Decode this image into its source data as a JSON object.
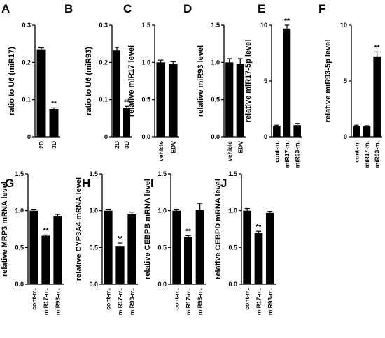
{
  "chart_data": [
    {
      "panel": "A",
      "type": "bar",
      "ylabel": "ratio to U6 (miR17)",
      "ylim": [
        0,
        0.3
      ],
      "yticks": [
        0,
        0.1,
        0.2,
        0.3
      ],
      "ytick_labels": [
        "0",
        "0.1",
        "0.2",
        "0.3"
      ],
      "categories": [
        "2D",
        "3D"
      ],
      "values": [
        0.235,
        0.075
      ],
      "errors": [
        0.004,
        0.003
      ],
      "annotations": [
        "",
        "**"
      ]
    },
    {
      "panel": "B",
      "type": "bar",
      "ylabel": "ratio to U6 (miR93)",
      "ylim": [
        0,
        0.3
      ],
      "yticks": [
        0,
        0.1,
        0.2,
        0.3
      ],
      "ytick_labels": [
        "0",
        "0.1",
        "0.2",
        "0.3"
      ],
      "categories": [
        "2D",
        "3D"
      ],
      "values": [
        0.232,
        0.077
      ],
      "errors": [
        0.008,
        0.005
      ],
      "annotations": [
        "",
        "**"
      ]
    },
    {
      "panel": "C",
      "type": "bar",
      "ylabel": "relative miR17 level",
      "ylim": [
        0,
        1.5
      ],
      "yticks": [
        0,
        0.5,
        1.0,
        1.5
      ],
      "ytick_labels": [
        "0.0",
        "0.5",
        "1.0",
        "1.5"
      ],
      "categories": [
        "vehicle",
        "EDV"
      ],
      "values": [
        1.0,
        0.98
      ],
      "errors": [
        0.03,
        0.03
      ],
      "annotations": [
        "",
        ""
      ]
    },
    {
      "panel": "D",
      "type": "bar",
      "ylabel": "relative miR93 level",
      "ylim": [
        0,
        1.5
      ],
      "yticks": [
        0,
        0.5,
        1.0,
        1.5
      ],
      "ytick_labels": [
        "0.0",
        "0.5",
        "1.0",
        "1.5"
      ],
      "categories": [
        "vehicle",
        "EDV"
      ],
      "values": [
        1.0,
        0.98
      ],
      "errors": [
        0.05,
        0.07
      ],
      "annotations": [
        "",
        ""
      ]
    },
    {
      "panel": "E",
      "type": "bar",
      "ylabel": "relative miR17-5p level",
      "ylim": [
        0,
        10
      ],
      "yticks": [
        0,
        5,
        10
      ],
      "ytick_labels": [
        "0",
        "5",
        "10"
      ],
      "categories": [
        "cont-m.",
        "miR17-m.",
        "miR93-m."
      ],
      "values": [
        1.0,
        9.7,
        1.05
      ],
      "errors": [
        0.05,
        0.3,
        0.15
      ],
      "annotations": [
        "",
        "**",
        ""
      ]
    },
    {
      "panel": "F",
      "type": "bar",
      "ylabel": "relative miR93-5p level",
      "ylim": [
        0,
        10
      ],
      "yticks": [
        0,
        5,
        10
      ],
      "ytick_labels": [
        "0",
        "5",
        "10"
      ],
      "categories": [
        "cont-m.",
        "miR17-m.",
        "miR93-m."
      ],
      "values": [
        1.0,
        0.95,
        7.2
      ],
      "errors": [
        0.05,
        0.05,
        0.4
      ],
      "annotations": [
        "",
        "",
        "**"
      ]
    },
    {
      "panel": "G",
      "type": "bar",
      "ylabel": "relative MRP3 mRNA level",
      "ylim": [
        0,
        1.5
      ],
      "yticks": [
        0,
        0.5,
        1.0,
        1.5
      ],
      "ytick_labels": [
        "0.0",
        "0.5",
        "1.0",
        "1.5"
      ],
      "categories": [
        "cont-m.",
        "miR17-m.",
        "miR93-m."
      ],
      "values": [
        1.0,
        0.66,
        0.92
      ],
      "errors": [
        0.02,
        0.01,
        0.03
      ],
      "annotations": [
        "",
        "**",
        ""
      ]
    },
    {
      "panel": "H",
      "type": "bar",
      "ylabel": "relative CYP3A4 mRNA level",
      "ylim": [
        0,
        1.5
      ],
      "yticks": [
        0,
        0.5,
        1.0,
        1.5
      ],
      "ytick_labels": [
        "0.0",
        "0.5",
        "1.0",
        "1.5"
      ],
      "categories": [
        "cont-m.",
        "miR17-m.",
        "miR93-m."
      ],
      "values": [
        1.0,
        0.52,
        0.95
      ],
      "errors": [
        0.02,
        0.04,
        0.03
      ],
      "annotations": [
        "",
        "**",
        ""
      ]
    },
    {
      "panel": "I",
      "type": "bar",
      "ylabel": "relative CEBPB mRNA level",
      "ylim": [
        0,
        1.5
      ],
      "yticks": [
        0,
        0.5,
        1.0,
        1.5
      ],
      "ytick_labels": [
        "0.0",
        "0.5",
        "1.0",
        "1.5"
      ],
      "categories": [
        "cont-m.",
        "miR17-m.",
        "miR93-m."
      ],
      "values": [
        1.0,
        0.64,
        1.01
      ],
      "errors": [
        0.02,
        0.02,
        0.09
      ],
      "annotations": [
        "",
        "**",
        ""
      ]
    },
    {
      "panel": "J",
      "type": "bar",
      "ylabel": "relative CEBPD mRNA level",
      "ylim": [
        0,
        1.5
      ],
      "yticks": [
        0,
        0.5,
        1.0,
        1.5
      ],
      "ytick_labels": [
        "0.0",
        "0.5",
        "1.0",
        "1.5"
      ],
      "categories": [
        "cont-m.",
        "miR17-m.",
        "miR93-m."
      ],
      "values": [
        1.0,
        0.7,
        0.97
      ],
      "errors": [
        0.03,
        0.02,
        0.02
      ],
      "annotations": [
        "",
        "**",
        ""
      ]
    }
  ]
}
